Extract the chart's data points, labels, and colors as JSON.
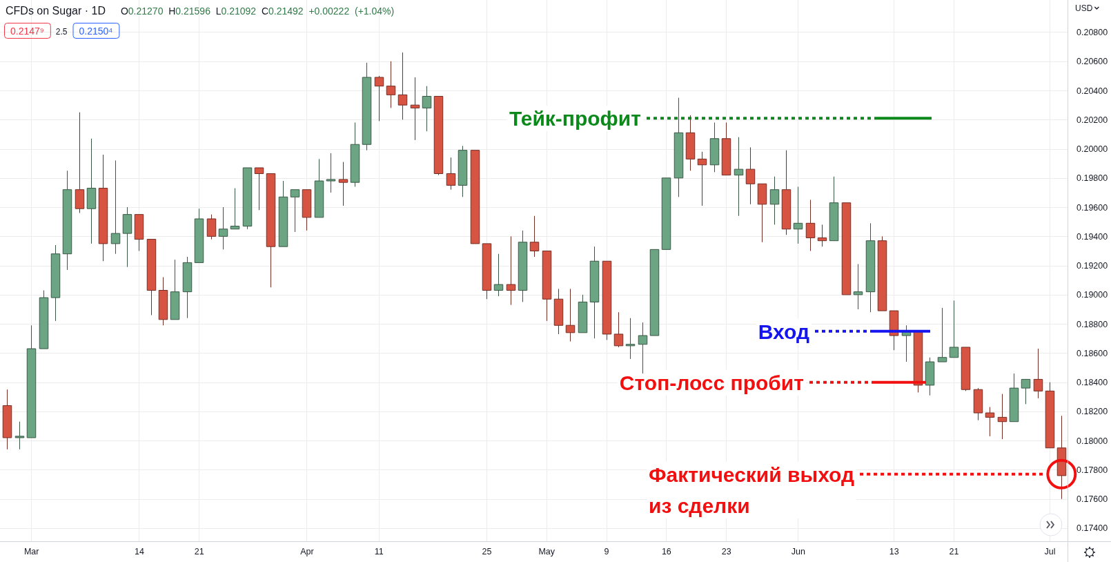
{
  "chart_data": {
    "type": "candlestick",
    "title": "CFDs on Sugar · 1D",
    "subtitle": "O0.21270 H0.21596 L0.21092 C0.21492 +0.00222 (+1.04%)",
    "categories": [
      null,
      null,
      "Mar",
      null,
      null,
      null,
      null,
      null,
      null,
      null,
      null,
      "14",
      null,
      null,
      null,
      null,
      "21",
      null,
      null,
      null,
      null,
      null,
      null,
      null,
      null,
      "Apr",
      null,
      null,
      null,
      null,
      null,
      "11",
      null,
      null,
      null,
      null,
      null,
      null,
      null,
      null,
      "25",
      null,
      null,
      null,
      null,
      "May",
      null,
      null,
      null,
      null,
      "9",
      null,
      null,
      null,
      null,
      "16",
      null,
      null,
      null,
      null,
      "23",
      null,
      null,
      null,
      null,
      null,
      "Jun",
      null,
      null,
      null,
      null,
      null,
      null,
      null,
      "13",
      null,
      null,
      null,
      null,
      "21",
      null,
      null,
      null,
      null,
      null,
      null,
      null,
      "Jul",
      null
    ],
    "ohlc": [
      [
        0.1824,
        0.1835,
        0.1794,
        0.1802
      ],
      [
        0.1802,
        0.1813,
        0.1794,
        0.1803
      ],
      [
        0.1802,
        0.1879,
        0.1802,
        0.1863
      ],
      [
        0.1863,
        0.1903,
        0.1863,
        0.1898
      ],
      [
        0.1898,
        0.1934,
        0.1882,
        0.1928
      ],
      [
        0.1928,
        0.1985,
        0.1917,
        0.1972
      ],
      [
        0.1972,
        0.2025,
        0.1956,
        0.1959
      ],
      [
        0.1959,
        0.2007,
        0.1935,
        0.1973
      ],
      [
        0.1973,
        0.1996,
        0.1923,
        0.1935
      ],
      [
        0.1935,
        0.1992,
        0.1928,
        0.1942
      ],
      [
        0.1942,
        0.196,
        0.1919,
        0.1955
      ],
      [
        0.1955,
        0.1955,
        0.193,
        0.1938
      ],
      [
        0.1938,
        0.1938,
        0.1886,
        0.1903
      ],
      [
        0.1903,
        0.1912,
        0.1879,
        0.1883
      ],
      [
        0.1883,
        0.1924,
        0.1883,
        0.1902
      ],
      [
        0.1902,
        0.1926,
        0.1884,
        0.1922
      ],
      [
        0.1922,
        0.1959,
        0.1922,
        0.1952
      ],
      [
        0.1952,
        0.1955,
        0.1938,
        0.194
      ],
      [
        0.194,
        0.196,
        0.1931,
        0.1945
      ],
      [
        0.1945,
        0.1973,
        0.1945,
        0.1947
      ],
      [
        0.1947,
        0.1987,
        0.1945,
        0.1987
      ],
      [
        0.1987,
        0.1987,
        0.1958,
        0.1983
      ],
      [
        0.1983,
        0.1983,
        0.1905,
        0.1933
      ],
      [
        0.1933,
        0.1978,
        0.1933,
        0.1967
      ],
      [
        0.1967,
        0.1972,
        0.1943,
        0.1972
      ],
      [
        0.1972,
        0.1972,
        0.1944,
        0.1953
      ],
      [
        0.1953,
        0.1993,
        0.1953,
        0.1978
      ],
      [
        0.1978,
        0.1997,
        0.197,
        0.1979
      ],
      [
        0.1979,
        0.1991,
        0.1961,
        0.1977
      ],
      [
        0.1977,
        0.2018,
        0.1974,
        0.2003
      ],
      [
        0.2003,
        0.2059,
        0.1999,
        0.2049
      ],
      [
        0.2049,
        0.205,
        0.2019,
        0.2043
      ],
      [
        0.2043,
        0.206,
        0.2028,
        0.2037
      ],
      [
        0.2037,
        0.2066,
        0.202,
        0.203
      ],
      [
        0.203,
        0.2049,
        0.2006,
        0.2028
      ],
      [
        0.2028,
        0.2043,
        0.2012,
        0.2036
      ],
      [
        0.2036,
        0.2036,
        0.1982,
        0.1983
      ],
      [
        0.1983,
        0.1994,
        0.1972,
        0.1975
      ],
      [
        0.1975,
        0.2002,
        0.1967,
        0.1999
      ],
      [
        0.1999,
        0.1999,
        0.1935,
        0.1935
      ],
      [
        0.1935,
        0.1935,
        0.1897,
        0.1903
      ],
      [
        0.1903,
        0.1928,
        0.1899,
        0.1907
      ],
      [
        0.1907,
        0.194,
        0.1893,
        0.1903
      ],
      [
        0.1903,
        0.1944,
        0.1895,
        0.1936
      ],
      [
        0.1936,
        0.1954,
        0.1926,
        0.193
      ],
      [
        0.193,
        0.193,
        0.1882,
        0.1897
      ],
      [
        0.1897,
        0.1904,
        0.1873,
        0.1879
      ],
      [
        0.1879,
        0.1904,
        0.1868,
        0.1874
      ],
      [
        0.1874,
        0.19,
        0.1874,
        0.1895
      ],
      [
        0.1895,
        0.1933,
        0.187,
        0.1923
      ],
      [
        0.1923,
        0.1923,
        0.1869,
        0.1873
      ],
      [
        0.1873,
        0.1888,
        0.1864,
        0.1865
      ],
      [
        0.1865,
        0.1884,
        0.1856,
        0.1866
      ],
      [
        0.1866,
        0.1881,
        0.1846,
        0.1872
      ],
      [
        0.1872,
        0.1931,
        0.1872,
        0.1931
      ],
      [
        0.1931,
        0.198,
        0.1931,
        0.198
      ],
      [
        0.198,
        0.2035,
        0.1967,
        0.2011
      ],
      [
        0.2011,
        0.2023,
        0.1985,
        0.1993
      ],
      [
        0.1993,
        0.1998,
        0.1961,
        0.1989
      ],
      [
        0.1989,
        0.2018,
        0.1984,
        0.2007
      ],
      [
        0.2007,
        0.2018,
        0.1982,
        0.1982
      ],
      [
        0.1982,
        0.2008,
        0.1954,
        0.1986
      ],
      [
        0.1986,
        0.2001,
        0.1962,
        0.1976
      ],
      [
        0.1976,
        0.1976,
        0.1936,
        0.1962
      ],
      [
        0.1962,
        0.1981,
        0.1948,
        0.1972
      ],
      [
        0.1972,
        0.1999,
        0.1941,
        0.1945
      ],
      [
        0.1945,
        0.1974,
        0.1935,
        0.1949
      ],
      [
        0.1949,
        0.1965,
        0.193,
        0.1939
      ],
      [
        0.1939,
        0.1948,
        0.1933,
        0.1937
      ],
      [
        0.1937,
        0.1981,
        0.1937,
        0.1963
      ],
      [
        0.1963,
        0.1963,
        0.19,
        0.19
      ],
      [
        0.19,
        0.1921,
        0.189,
        0.1902
      ],
      [
        0.1902,
        0.1949,
        0.1888,
        0.1937
      ],
      [
        0.1937,
        0.194,
        0.1889,
        0.1889
      ],
      [
        0.1889,
        0.1889,
        0.1862,
        0.1872
      ],
      [
        0.1872,
        0.1879,
        0.1854,
        0.1875
      ],
      [
        0.1875,
        0.1875,
        0.1833,
        0.1838
      ],
      [
        0.1838,
        0.1857,
        0.1831,
        0.1854
      ],
      [
        0.1854,
        0.1891,
        0.1854,
        0.1857
      ],
      [
        0.1857,
        0.1896,
        0.1857,
        0.1864
      ],
      [
        0.1864,
        0.1864,
        0.1834,
        0.1835
      ],
      [
        0.1835,
        0.1836,
        0.1814,
        0.1819
      ],
      [
        0.1819,
        0.1823,
        0.1803,
        0.1816
      ],
      [
        0.1816,
        0.1832,
        0.1801,
        0.1813
      ],
      [
        0.1813,
        0.1846,
        0.1813,
        0.1836
      ],
      [
        0.1836,
        0.1842,
        0.1825,
        0.1842
      ],
      [
        0.1842,
        0.1863,
        0.1829,
        0.1834
      ],
      [
        0.1834,
        0.184,
        0.1795,
        0.1795
      ],
      [
        0.1795,
        0.1817,
        0.176,
        0.1776
      ]
    ],
    "colors": [
      "#d75442",
      "#6ba583",
      "#6ba583",
      "#6ba583",
      "#6ba583",
      "#6ba583",
      "#d75442",
      "#6ba583",
      "#d75442",
      "#6ba583",
      "#6ba583",
      "#d75442",
      "#d75442",
      "#d75442",
      "#6ba583",
      "#6ba583",
      "#6ba583",
      "#d75442",
      "#6ba583",
      "#6ba583",
      "#6ba583",
      "#d75442",
      "#d75442",
      "#6ba583",
      "#6ba583",
      "#d75442",
      "#6ba583",
      "#6ba583",
      "#d75442",
      "#6ba583",
      "#6ba583",
      "#d75442",
      "#d75442",
      "#d75442",
      "#d75442",
      "#6ba583",
      "#d75442",
      "#d75442",
      "#6ba583",
      "#d75442",
      "#d75442",
      "#6ba583",
      "#d75442",
      "#6ba583",
      "#d75442",
      "#d75442",
      "#d75442",
      "#d75442",
      "#6ba583",
      "#6ba583",
      "#d75442",
      "#d75442",
      "#6ba583",
      "#6ba583",
      "#6ba583",
      "#6ba583",
      "#6ba583",
      "#d75442",
      "#d75442",
      "#6ba583",
      "#d75442",
      "#6ba583",
      "#d75442",
      "#d75442",
      "#6ba583",
      "#d75442",
      "#6ba583",
      "#d75442",
      "#d75442",
      "#6ba583",
      "#d75442",
      "#6ba583",
      "#6ba583",
      "#d75442",
      "#d75442",
      "#6ba583",
      "#d75442",
      "#6ba583",
      "#6ba583",
      "#6ba583",
      "#d75442",
      "#d75442",
      "#d75442",
      "#d75442",
      "#6ba583",
      "#6ba583",
      "#d75442",
      "#d75442",
      "#d75442"
    ],
    "ylim": [
      0.1731,
      0.2102
    ],
    "yticks": [
      {
        "value": 0.174,
        "label": "0.17400"
      },
      {
        "value": 0.176,
        "label": "0.17600"
      },
      {
        "value": 0.178,
        "label": "0.17800"
      },
      {
        "value": 0.18,
        "label": "0.18000"
      },
      {
        "value": 0.182,
        "label": "0.18200"
      },
      {
        "value": 0.184,
        "label": "0.18400"
      },
      {
        "value": 0.186,
        "label": "0.18600"
      },
      {
        "value": 0.188,
        "label": "0.18800"
      },
      {
        "value": 0.19,
        "label": "0.19000"
      },
      {
        "value": 0.192,
        "label": "0.19200"
      },
      {
        "value": 0.194,
        "label": "0.19400"
      },
      {
        "value": 0.196,
        "label": "0.19600"
      },
      {
        "value": 0.198,
        "label": "0.19800"
      },
      {
        "value": 0.2,
        "label": "0.20000"
      },
      {
        "value": 0.202,
        "label": "0.20200"
      },
      {
        "value": 0.204,
        "label": "0.20400"
      },
      {
        "value": 0.206,
        "label": "0.20600"
      },
      {
        "value": 0.208,
        "label": "0.20800"
      }
    ],
    "grid": true,
    "ref_lines": [
      {
        "axis": "y",
        "value": 0.2021,
        "label": "Тейк-профит",
        "color": "#0b8a1b",
        "line_style": "dotted"
      },
      {
        "axis": "y",
        "value": 0.1875,
        "label": "Вход",
        "color": "#1515f0",
        "line_style": "dotted"
      },
      {
        "axis": "y",
        "value": 0.184,
        "label": "Стоп-лосс пробит",
        "color": "#f20f0f",
        "line_style": "dotted"
      },
      {
        "axis": "y",
        "value": 0.1777,
        "label": "Фактический выход из сделки",
        "color": "#f20f0f",
        "line_style": "dotted"
      }
    ],
    "annotations": [
      "0.2147⁹",
      "2.5",
      "0.2150⁴",
      "USD"
    ]
  }
}
